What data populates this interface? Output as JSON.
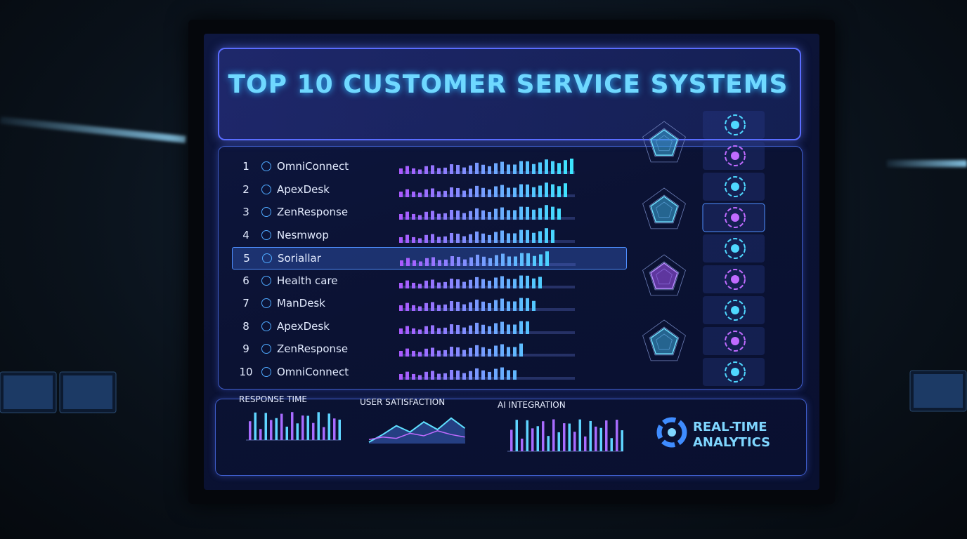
{
  "header": {
    "title": "TOP 10 CUSTOMER SERVICE SYSTEMS"
  },
  "rows": [
    {
      "rank": 1,
      "name": "OmniConnect"
    },
    {
      "rank": 2,
      "name": "ApexDesk"
    },
    {
      "rank": 3,
      "name": "ZenResponse"
    },
    {
      "rank": 4,
      "name": "Nesmwop"
    },
    {
      "rank": 5,
      "name": "Soriallar"
    },
    {
      "rank": 6,
      "name": "Health care"
    },
    {
      "rank": 7,
      "name": "ManDesk"
    },
    {
      "rank": 8,
      "name": "ApexDesk"
    },
    {
      "rank": 9,
      "name": "ZenResponse"
    },
    {
      "rank": 10,
      "name": "OmniConnect"
    }
  ],
  "charts": [
    {
      "title": "RESPONSE TIME"
    },
    {
      "title": "USER SATISFACTION"
    },
    {
      "title": "AI INTEGRATION"
    }
  ],
  "brand": {
    "line1": "REAL-TIME",
    "line2": "ANALYTICS"
  }
}
